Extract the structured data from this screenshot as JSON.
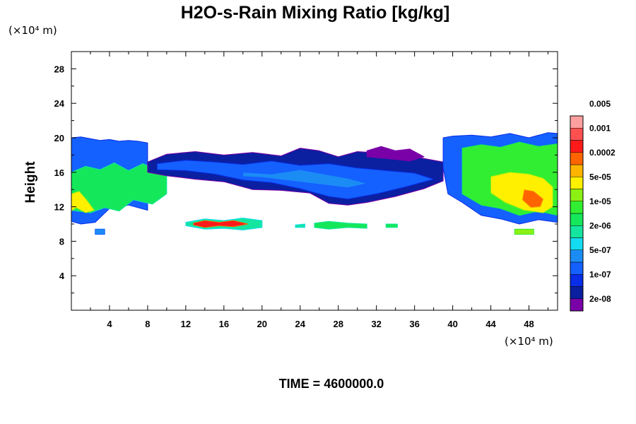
{
  "chart_data": {
    "type": "heatmap",
    "title": "H2O-s-Rain Mixing Ratio [kg/kg]",
    "ylabel": "Height",
    "xunit": "(×10⁴ m)",
    "yunit": "(×10⁴ m)",
    "time_label": "TIME = 4600000.0",
    "xlim": [
      0,
      51
    ],
    "ylim": [
      0,
      30
    ],
    "xticks": [
      4,
      8,
      12,
      16,
      20,
      24,
      28,
      32,
      36,
      40,
      44,
      48
    ],
    "xtick_labels": [
      "4",
      "8",
      "12",
      "16",
      "20",
      "24",
      "28",
      "32",
      "36",
      "40",
      "44",
      "48"
    ],
    "yticks": [
      4,
      8,
      12,
      16,
      20,
      24,
      28
    ],
    "ytick_labels": [
      "4",
      "8",
      "12",
      "16",
      "20",
      "24",
      "28"
    ],
    "colorbar": {
      "colors": [
        "#7a00a8",
        "#0a20a0",
        "#0a2de8",
        "#1461ff",
        "#1c8cf5",
        "#14dcf0",
        "#14e6a0",
        "#14e85a",
        "#32ee32",
        "#8cf014",
        "#fff000",
        "#ffb400",
        "#ff6400",
        "#ff1a1a",
        "#ff5050",
        "#ffa0a0"
      ],
      "labels": [
        "2e-08",
        "1e-07",
        "5e-07",
        "2e-06",
        "1e-05",
        "5e-05",
        "0.0002",
        "0.001",
        "0.005"
      ]
    },
    "regions": [
      {
        "x": [
          0,
          1,
          2,
          3,
          4,
          5,
          6,
          7,
          8,
          8,
          6,
          4,
          2.5,
          1,
          0
        ],
        "y": [
          20,
          20.1,
          19.9,
          19.7,
          19.8,
          19.6,
          19.7,
          19.6,
          19.4,
          11.6,
          12.2,
          11.8,
          10.2,
          10.0,
          10.3
        ],
        "level": 3
      },
      {
        "x": [
          0,
          1.5,
          3,
          4.5,
          6,
          7.5,
          10,
          10,
          8.5,
          6.5,
          5,
          3.5,
          2,
          0
        ],
        "y": [
          16,
          16.7,
          16.3,
          17.1,
          16.2,
          17,
          15.8,
          13.5,
          12.3,
          12.8,
          11.5,
          11.9,
          11.3,
          11.6
        ],
        "level": 7
      },
      {
        "x": [
          0,
          0.8,
          1.6,
          2.4,
          1.5,
          0.5,
          0
        ],
        "y": [
          13.5,
          13.8,
          12.8,
          11.6,
          11.3,
          11.9,
          11.5
        ],
        "level": 10
      },
      {
        "x": [
          8,
          10,
          13,
          16,
          19,
          22,
          24,
          26,
          28,
          30,
          33,
          36,
          39,
          39,
          37,
          34,
          31,
          29,
          27,
          25,
          22,
          19,
          16,
          13,
          10,
          8
        ],
        "y": [
          17.2,
          18.1,
          18.4,
          18.0,
          18.3,
          17.9,
          18.8,
          18.5,
          17.8,
          18.4,
          18.2,
          17.8,
          17.2,
          15.0,
          14.1,
          13.2,
          12.5,
          12.2,
          12.4,
          13.6,
          13.9,
          14.0,
          14.9,
          15.2,
          15.6,
          16.0
        ],
        "level": 1
      },
      {
        "x": [
          9,
          12,
          15,
          18,
          21,
          24,
          27,
          30,
          33,
          36,
          38,
          35,
          32,
          29,
          27,
          24,
          21,
          18,
          15,
          12,
          9
        ],
        "y": [
          17.0,
          17.4,
          17.2,
          16.9,
          17.3,
          16.8,
          17.0,
          16.5,
          16.2,
          15.9,
          15.2,
          14.3,
          13.5,
          12.9,
          13.2,
          14.1,
          14.8,
          15.1,
          15.8,
          16.2,
          16.3
        ],
        "level": 3
      },
      {
        "x": [
          18,
          21,
          24,
          27,
          29,
          31,
          29,
          26,
          23,
          20,
          18
        ],
        "y": [
          16.0,
          15.8,
          16.3,
          15.7,
          15.3,
          14.7,
          14.2,
          14.6,
          15.0,
          15.4,
          15.5
        ],
        "level": 4
      },
      {
        "x": [
          31,
          32.5,
          34,
          35.5,
          37,
          35.5,
          33,
          31
        ],
        "y": [
          18.5,
          19.0,
          18.5,
          18.7,
          17.8,
          17.3,
          17.6,
          17.8
        ],
        "level": 0
      },
      {
        "x": [
          39,
          40,
          42,
          44,
          46,
          48,
          50,
          51,
          51,
          49,
          47,
          45,
          43,
          41,
          39.5,
          39
        ],
        "y": [
          20.0,
          20.2,
          20.3,
          20.1,
          20.5,
          20.0,
          20.6,
          20.5,
          10.2,
          10.5,
          10.0,
          10.6,
          11.0,
          12.5,
          13.5,
          16.5
        ],
        "level": 3
      },
      {
        "x": [
          41,
          43,
          45,
          47,
          49,
          51,
          51,
          49,
          47,
          45,
          43,
          41
        ],
        "y": [
          18.8,
          19.2,
          18.9,
          19.5,
          19.0,
          19.3,
          11.0,
          11.5,
          11.0,
          11.8,
          12.2,
          13.5
        ],
        "level": 8
      },
      {
        "x": [
          44,
          46,
          48,
          49.5,
          50.5,
          50.5,
          49.5,
          47.5,
          45.5,
          44
        ],
        "y": [
          15.5,
          16.0,
          15.8,
          15.3,
          14.3,
          12.0,
          11.3,
          11.6,
          12.5,
          13.6
        ],
        "level": 10
      },
      {
        "x": [
          47.5,
          48.5,
          49.5,
          49.2,
          48.2,
          47.3
        ],
        "y": [
          14.0,
          13.8,
          12.9,
          12.0,
          11.9,
          12.8
        ],
        "level": 12
      },
      {
        "x": [
          12,
          14,
          16,
          18,
          20,
          20,
          18,
          16,
          14,
          12
        ],
        "y": [
          10.2,
          10.6,
          10.4,
          10.7,
          10.4,
          9.6,
          9.3,
          9.5,
          9.4,
          9.8
        ],
        "level": 6
      },
      {
        "x": [
          12.8,
          14,
          15.5,
          17,
          18.5,
          17,
          15.5,
          14,
          12.8
        ],
        "y": [
          10.1,
          10.4,
          10.2,
          10.4,
          10.0,
          9.7,
          9.8,
          9.6,
          9.9
        ],
        "level": 13
      },
      {
        "x": [
          23.5,
          24.5,
          24.5,
          23.5
        ],
        "y": [
          9.9,
          10.0,
          9.6,
          9.6
        ],
        "level": 6
      },
      {
        "x": [
          25.5,
          27,
          29,
          31,
          31,
          29,
          27,
          25.5
        ],
        "y": [
          10.1,
          10.3,
          10.1,
          10.0,
          9.5,
          9.6,
          9.4,
          9.6
        ],
        "level": 7
      },
      {
        "x": [
          33,
          34.2,
          34.2,
          33
        ],
        "y": [
          10.0,
          10.0,
          9.6,
          9.6
        ],
        "level": 7
      },
      {
        "x": [
          2.5,
          3.5,
          3.5,
          2.5
        ],
        "y": [
          9.4,
          9.4,
          8.8,
          8.8
        ],
        "level": 4
      },
      {
        "x": [
          46.5,
          48.5,
          48.5,
          46.5
        ],
        "y": [
          9.4,
          9.4,
          8.8,
          8.8
        ],
        "level": 9
      }
    ]
  }
}
